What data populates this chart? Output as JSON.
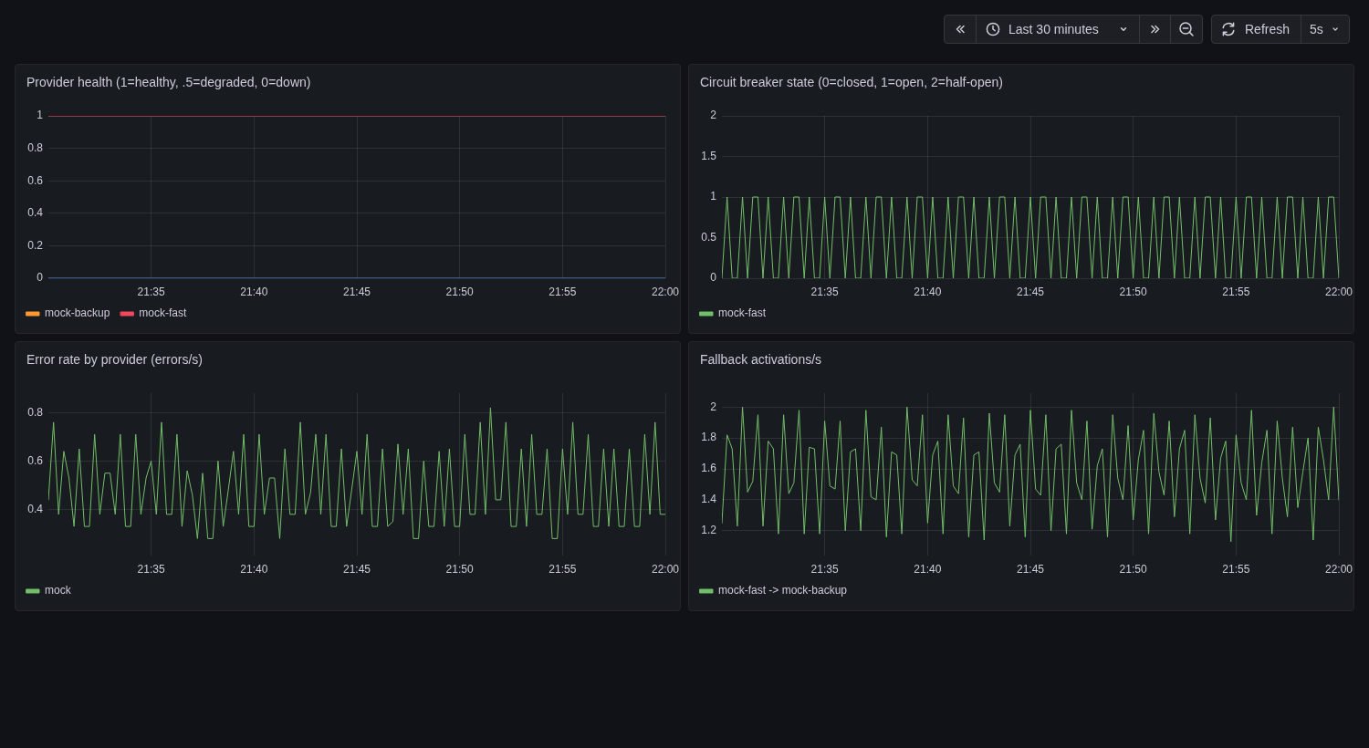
{
  "chart_data": [
    {
      "type": "other",
      "annotations": [
        "Last 30 minutes",
        "Refresh",
        "5s"
      ]
    },
    {
      "type": "line",
      "title": "Provider health (1=healthy, .5=degraded, 0=down)",
      "x": [
        21.5,
        22
      ],
      "series": [
        {
          "color": "#5794f2",
          "values": [
            0,
            0
          ]
        },
        {
          "name": "mock-backup",
          "color": "#ff9830",
          "values": [
            null,
            null
          ]
        },
        {
          "name": "mock-fast",
          "color": "#f2495c",
          "values": [
            1,
            1
          ]
        }
      ],
      "xlim": [
        21.5,
        22
      ],
      "xticks": [
        {
          "value": 21.5833,
          "label": "21:35"
        },
        {
          "value": 21.6667,
          "label": "21:40"
        },
        {
          "value": 21.75,
          "label": "21:45"
        },
        {
          "value": 21.8333,
          "label": "21:50"
        },
        {
          "value": 21.9167,
          "label": "21:55"
        },
        {
          "value": 22,
          "label": "22:00"
        }
      ],
      "ylim": [
        0,
        1
      ],
      "yticks": [
        0,
        0.2,
        0.4,
        0.6,
        0.8,
        1
      ],
      "grid": true,
      "legend": "bottom left"
    },
    {
      "type": "line",
      "title": "Circuit breaker state (0=closed, 1=open, 2=half-open)",
      "x": [
        21.5,
        21.5042,
        21.5083,
        21.5125,
        21.5167,
        21.5208,
        21.525,
        21.5292,
        21.5333,
        21.5375,
        21.5417,
        21.5458,
        21.55,
        21.5542,
        21.5583,
        21.5625,
        21.5667,
        21.5708,
        21.575,
        21.5792,
        21.5833,
        21.5875,
        21.5917,
        21.5958,
        21.6,
        21.6042,
        21.6083,
        21.6125,
        21.6167,
        21.6208,
        21.625,
        21.6292,
        21.6333,
        21.6375,
        21.6417,
        21.6458,
        21.65,
        21.6542,
        21.6583,
        21.6625,
        21.6667,
        21.6708,
        21.675,
        21.6792,
        21.6833,
        21.6875,
        21.6917,
        21.6958,
        21.7,
        21.7042,
        21.7083,
        21.7125,
        21.7167,
        21.7208,
        21.725,
        21.7292,
        21.7333,
        21.7375,
        21.7417,
        21.7458,
        21.75,
        21.7542,
        21.7583,
        21.7625,
        21.7667,
        21.7708,
        21.775,
        21.7792,
        21.7833,
        21.7875,
        21.7917,
        21.7958,
        21.8,
        21.8042,
        21.8083,
        21.8125,
        21.8167,
        21.8208,
        21.825,
        21.8292,
        21.8333,
        21.8375,
        21.8417,
        21.8458,
        21.85,
        21.8542,
        21.8583,
        21.8625,
        21.8667,
        21.8708,
        21.875,
        21.8792,
        21.8833,
        21.8875,
        21.8917,
        21.8958,
        21.9,
        21.9042,
        21.9083,
        21.9125,
        21.9167,
        21.9208,
        21.925,
        21.9292,
        21.9333,
        21.9375,
        21.9417,
        21.9458,
        21.95,
        21.9542,
        21.9583,
        21.9625,
        21.9667,
        21.9708,
        21.975,
        21.9792,
        21.9833,
        21.9875,
        21.9917,
        21.9958,
        22
      ],
      "series": [
        {
          "name": "mock-fast",
          "color": "#73bf69",
          "values": [
            0,
            1,
            0,
            0,
            1,
            0,
            1,
            1,
            0,
            1,
            0,
            0,
            1,
            0,
            1,
            1,
            0,
            1,
            0,
            0,
            1,
            0,
            1,
            1,
            0,
            1,
            0,
            0,
            1,
            0,
            1,
            1,
            0,
            1,
            0,
            0,
            1,
            0,
            1,
            1,
            0,
            1,
            0,
            0,
            1,
            0,
            1,
            1,
            0,
            1,
            0,
            0,
            1,
            0,
            1,
            1,
            0,
            1,
            0,
            0,
            1,
            0,
            1,
            1,
            0,
            1,
            0,
            0,
            1,
            0,
            1,
            1,
            0,
            1,
            0,
            0,
            1,
            0,
            1,
            1,
            0,
            1,
            0,
            0,
            1,
            0,
            1,
            1,
            0,
            1,
            0,
            0,
            1,
            0,
            1,
            1,
            0,
            1,
            0,
            0,
            1,
            0,
            1,
            1,
            0,
            1,
            0,
            0,
            1,
            0,
            1,
            1,
            0,
            1,
            0,
            0,
            1,
            0,
            1,
            1,
            0
          ]
        }
      ],
      "xlim": [
        21.5,
        22
      ],
      "xticks": [
        {
          "value": 21.5833,
          "label": "21:35"
        },
        {
          "value": 21.6667,
          "label": "21:40"
        },
        {
          "value": 21.75,
          "label": "21:45"
        },
        {
          "value": 21.8333,
          "label": "21:50"
        },
        {
          "value": 21.9167,
          "label": "21:55"
        },
        {
          "value": 22,
          "label": "22:00"
        }
      ],
      "ylim": [
        0,
        2
      ],
      "yticks": [
        0,
        0.5,
        1,
        1.5,
        2
      ],
      "grid": true,
      "legend": "bottom left"
    },
    {
      "type": "line",
      "title": "Error rate by provider (errors/s)",
      "x": [
        21.5,
        21.5042,
        21.5083,
        21.5125,
        21.5167,
        21.5208,
        21.525,
        21.5292,
        21.5333,
        21.5375,
        21.5417,
        21.5458,
        21.55,
        21.5542,
        21.5583,
        21.5625,
        21.5667,
        21.5708,
        21.575,
        21.5792,
        21.5833,
        21.5875,
        21.5917,
        21.5958,
        21.6,
        21.6042,
        21.6083,
        21.6125,
        21.6167,
        21.6208,
        21.625,
        21.6292,
        21.6333,
        21.6375,
        21.6417,
        21.6458,
        21.65,
        21.6542,
        21.6583,
        21.6625,
        21.6667,
        21.6708,
        21.675,
        21.6792,
        21.6833,
        21.6875,
        21.6917,
        21.6958,
        21.7,
        21.7042,
        21.7083,
        21.7125,
        21.7167,
        21.7208,
        21.725,
        21.7292,
        21.7333,
        21.7375,
        21.7417,
        21.7458,
        21.75,
        21.7542,
        21.7583,
        21.7625,
        21.7667,
        21.7708,
        21.775,
        21.7792,
        21.7833,
        21.7875,
        21.7917,
        21.7958,
        21.8,
        21.8042,
        21.8083,
        21.8125,
        21.8167,
        21.8208,
        21.825,
        21.8292,
        21.8333,
        21.8375,
        21.8417,
        21.8458,
        21.85,
        21.8542,
        21.8583,
        21.8625,
        21.8667,
        21.8708,
        21.875,
        21.8792,
        21.8833,
        21.8875,
        21.8917,
        21.8958,
        21.9,
        21.9042,
        21.9083,
        21.9125,
        21.9167,
        21.9208,
        21.925,
        21.9292,
        21.9333,
        21.9375,
        21.9417,
        21.9458,
        21.95,
        21.9542,
        21.9583,
        21.9625,
        21.9667,
        21.9708,
        21.975,
        21.9792,
        21.9833,
        21.9875,
        21.9917,
        21.9958,
        22
      ],
      "series": [
        {
          "name": "mock",
          "color": "#73bf69",
          "values": [
            0.44,
            0.76,
            0.38,
            0.64,
            0.53,
            0.33,
            0.65,
            0.33,
            0.33,
            0.71,
            0.38,
            0.55,
            0.55,
            0.38,
            0.71,
            0.33,
            0.33,
            0.71,
            0.38,
            0.53,
            0.6,
            0.38,
            0.76,
            0.38,
            0.38,
            0.71,
            0.33,
            0.56,
            0.46,
            0.28,
            0.55,
            0.28,
            0.28,
            0.6,
            0.33,
            0.48,
            0.64,
            0.38,
            0.71,
            0.33,
            0.33,
            0.71,
            0.38,
            0.53,
            0.53,
            0.28,
            0.65,
            0.38,
            0.38,
            0.76,
            0.38,
            0.47,
            0.71,
            0.38,
            0.71,
            0.33,
            0.33,
            0.65,
            0.33,
            0.48,
            0.64,
            0.38,
            0.71,
            0.33,
            0.33,
            0.65,
            0.33,
            0.35,
            0.67,
            0.38,
            0.65,
            0.28,
            0.28,
            0.6,
            0.33,
            0.33,
            0.64,
            0.33,
            0.65,
            0.33,
            0.33,
            0.71,
            0.38,
            0.38,
            0.76,
            0.38,
            0.82,
            0.44,
            0.44,
            0.76,
            0.33,
            0.33,
            0.65,
            0.33,
            0.71,
            0.38,
            0.38,
            0.65,
            0.28,
            0.28,
            0.65,
            0.38,
            0.76,
            0.38,
            0.38,
            0.71,
            0.33,
            0.33,
            0.65,
            0.33,
            0.65,
            0.33,
            0.33,
            0.65,
            0.33,
            0.33,
            0.71,
            0.38,
            0.76,
            0.38,
            0.38
          ]
        }
      ],
      "xlim": [
        21.5,
        22
      ],
      "xticks": [
        {
          "value": 21.5833,
          "label": "21:35"
        },
        {
          "value": 21.6667,
          "label": "21:40"
        },
        {
          "value": 21.75,
          "label": "21:45"
        },
        {
          "value": 21.8333,
          "label": "21:50"
        },
        {
          "value": 21.9167,
          "label": "21:55"
        },
        {
          "value": 22,
          "label": "22:00"
        }
      ],
      "ylim": [
        0.21,
        0.88
      ],
      "yticks": [
        0.4,
        0.6,
        0.8
      ],
      "grid": true,
      "legend": "bottom left"
    },
    {
      "type": "line",
      "title": "Fallback activations/s",
      "x": [
        21.5,
        21.5042,
        21.5083,
        21.5125,
        21.5167,
        21.5208,
        21.525,
        21.5292,
        21.5333,
        21.5375,
        21.5417,
        21.5458,
        21.55,
        21.5542,
        21.5583,
        21.5625,
        21.5667,
        21.5708,
        21.575,
        21.5792,
        21.5833,
        21.5875,
        21.5917,
        21.5958,
        21.6,
        21.6042,
        21.6083,
        21.6125,
        21.6167,
        21.6208,
        21.625,
        21.6292,
        21.6333,
        21.6375,
        21.6417,
        21.6458,
        21.65,
        21.6542,
        21.6583,
        21.6625,
        21.6667,
        21.6708,
        21.675,
        21.6792,
        21.6833,
        21.6875,
        21.6917,
        21.6958,
        21.7,
        21.7042,
        21.7083,
        21.7125,
        21.7167,
        21.7208,
        21.725,
        21.7292,
        21.7333,
        21.7375,
        21.7417,
        21.7458,
        21.75,
        21.7542,
        21.7583,
        21.7625,
        21.7667,
        21.7708,
        21.775,
        21.7792,
        21.7833,
        21.7875,
        21.7917,
        21.7958,
        21.8,
        21.8042,
        21.8083,
        21.8125,
        21.8167,
        21.8208,
        21.825,
        21.8292,
        21.8333,
        21.8375,
        21.8417,
        21.8458,
        21.85,
        21.8542,
        21.8583,
        21.8625,
        21.8667,
        21.8708,
        21.875,
        21.8792,
        21.8833,
        21.8875,
        21.8917,
        21.8958,
        21.9,
        21.9042,
        21.9083,
        21.9125,
        21.9167,
        21.9208,
        21.925,
        21.9292,
        21.9333,
        21.9375,
        21.9417,
        21.9458,
        21.95,
        21.9542,
        21.9583,
        21.9625,
        21.9667,
        21.9708,
        21.975,
        21.9792,
        21.9833,
        21.9875,
        21.9917,
        21.9958,
        22
      ],
      "series": [
        {
          "name": "mock-fast -> mock-backup",
          "color": "#73bf69",
          "values": [
            1.25,
            1.82,
            1.73,
            1.23,
            2.0,
            1.45,
            1.52,
            1.95,
            1.23,
            1.78,
            1.73,
            1.18,
            1.95,
            1.44,
            1.51,
            1.98,
            1.18,
            1.74,
            1.73,
            1.18,
            1.91,
            1.49,
            1.47,
            1.91,
            1.2,
            1.71,
            1.73,
            1.2,
            1.98,
            1.42,
            1.4,
            1.87,
            1.16,
            1.71,
            1.69,
            1.18,
            2.0,
            1.53,
            1.49,
            1.95,
            1.25,
            1.69,
            1.78,
            1.18,
            1.95,
            1.49,
            1.44,
            1.93,
            1.16,
            1.69,
            1.71,
            1.14,
            1.96,
            1.51,
            1.45,
            1.95,
            1.23,
            1.69,
            1.76,
            1.16,
            1.98,
            1.47,
            1.43,
            1.95,
            1.2,
            1.73,
            1.76,
            1.18,
            1.98,
            1.51,
            1.4,
            1.91,
            1.21,
            1.62,
            1.73,
            1.16,
            1.95,
            1.54,
            1.4,
            1.88,
            1.27,
            1.66,
            1.85,
            1.18,
            1.96,
            1.58,
            1.43,
            1.91,
            1.29,
            1.73,
            1.85,
            1.18,
            1.95,
            1.54,
            1.38,
            1.93,
            1.27,
            1.67,
            1.78,
            1.13,
            1.82,
            1.51,
            1.4,
            1.98,
            1.3,
            1.64,
            1.85,
            1.18,
            1.91,
            1.54,
            1.29,
            1.87,
            1.35,
            1.58,
            1.8,
            1.14,
            1.87,
            1.66,
            1.4,
            2.0,
            1.4
          ]
        }
      ],
      "xlim": [
        21.5,
        22
      ],
      "xticks": [
        {
          "value": 21.5833,
          "label": "21:35"
        },
        {
          "value": 21.6667,
          "label": "21:40"
        },
        {
          "value": 21.75,
          "label": "21:45"
        },
        {
          "value": 21.8333,
          "label": "21:50"
        },
        {
          "value": 21.9167,
          "label": "21:55"
        },
        {
          "value": 22,
          "label": "22:00"
        }
      ],
      "ylim": [
        1.04,
        2.09
      ],
      "yticks": [
        1.2,
        1.4,
        1.6,
        1.8,
        2
      ],
      "grid": true,
      "legend": "bottom left"
    }
  ]
}
